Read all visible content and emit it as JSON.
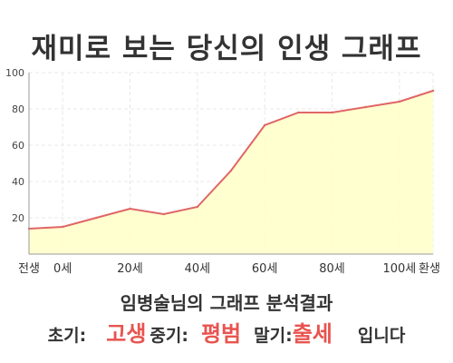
{
  "title": "재미로 보는 당신의 인생 그래프",
  "subtitle": "임병술님의 그래프 분석결과",
  "summary": {
    "early_label": "초기:",
    "early_value": "고생",
    "mid_label": "중기:",
    "mid_value": "평범",
    "late_label": "말기:",
    "late_value": "출세",
    "ending": "입니다"
  },
  "colors": {
    "line": "#e06666",
    "fill": "#ffffc8",
    "highlight": "#e8544f",
    "grid": "#e8e8e8"
  },
  "chart_data": {
    "type": "area",
    "title": "",
    "xlabel": "",
    "ylabel": "",
    "ylim": [
      0,
      100
    ],
    "yticks": [
      20,
      40,
      60,
      80,
      100
    ],
    "xlim": [
      -10,
      110
    ],
    "x_tick_labels": [
      {
        "x": -10,
        "label": "전생"
      },
      {
        "x": 0,
        "label": "0세"
      },
      {
        "x": 20,
        "label": "20세"
      },
      {
        "x": 40,
        "label": "40세"
      },
      {
        "x": 60,
        "label": "60세"
      },
      {
        "x": 80,
        "label": "80세"
      },
      {
        "x": 100,
        "label": "100세"
      },
      {
        "x": 110,
        "label": "환생"
      }
    ],
    "grid": true,
    "x": [
      -10,
      0,
      10,
      20,
      30,
      40,
      50,
      60,
      70,
      80,
      90,
      100,
      110
    ],
    "values": [
      14,
      15,
      20,
      25,
      22,
      26,
      46,
      71,
      78,
      78,
      81,
      84,
      90
    ]
  }
}
